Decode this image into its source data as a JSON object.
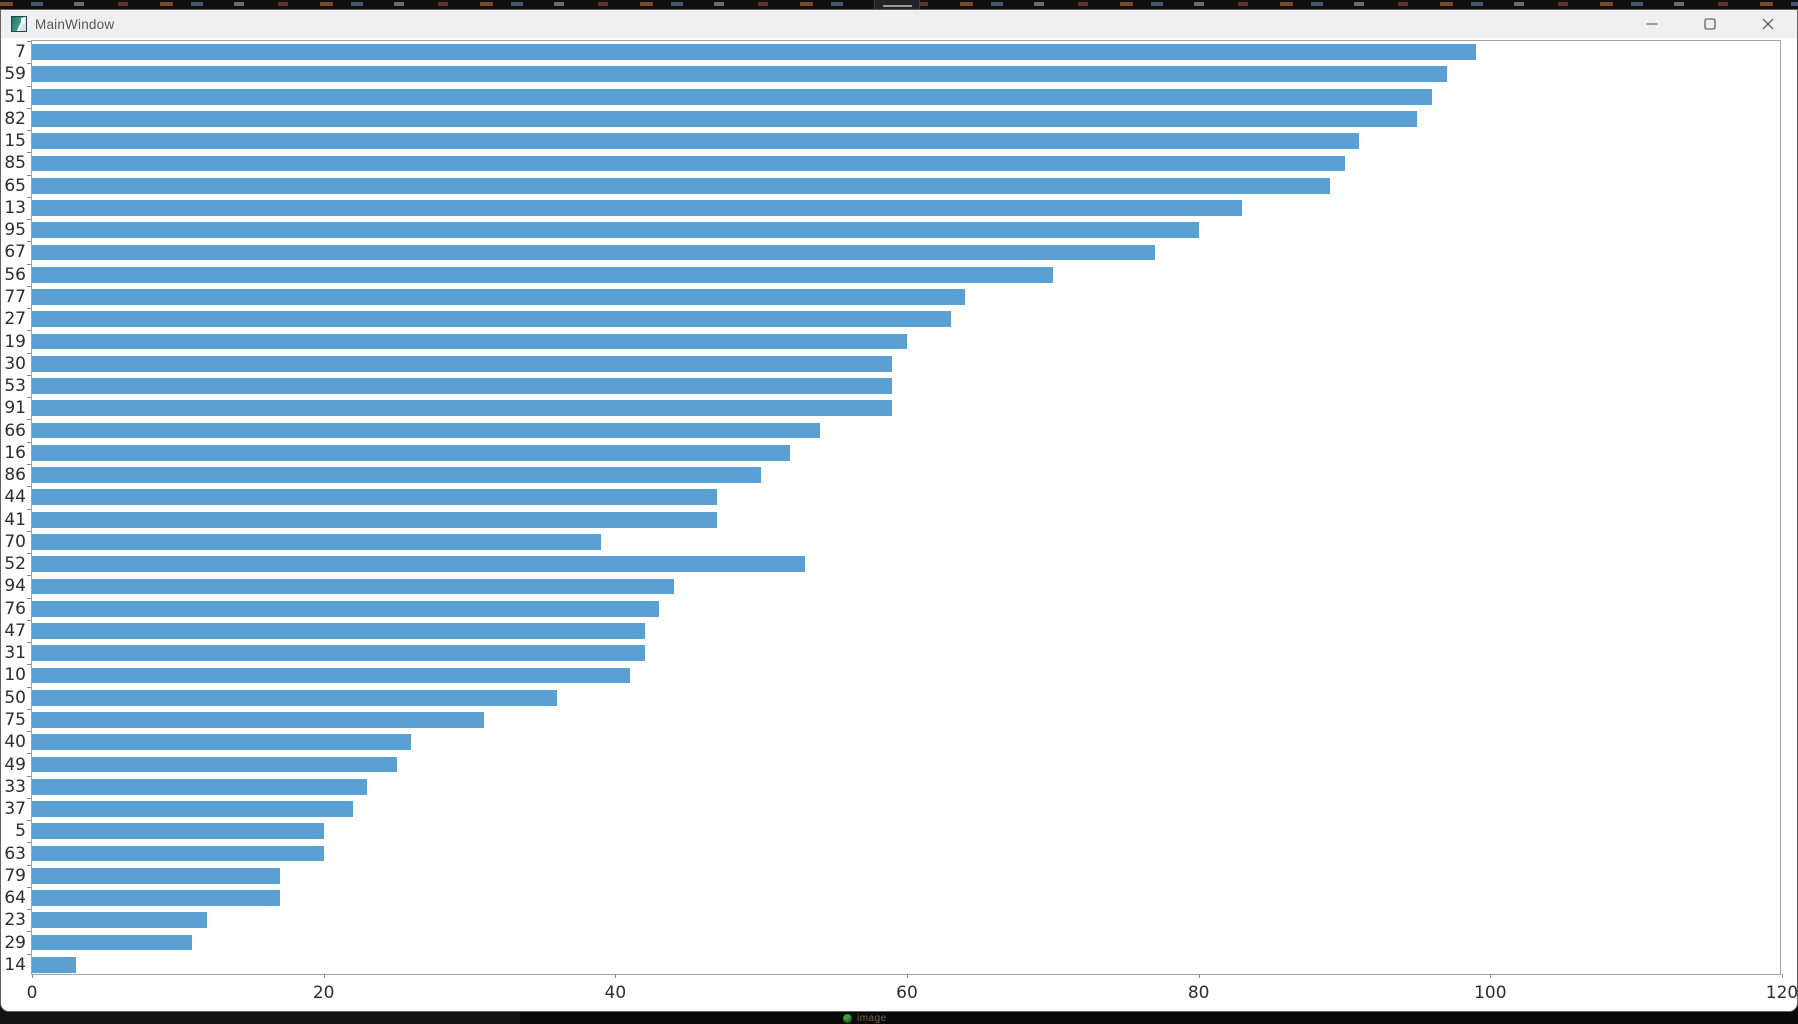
{
  "window": {
    "title": "MainWindow",
    "controls": [
      {
        "name": "minimize"
      },
      {
        "name": "maximize"
      },
      {
        "name": "close"
      }
    ]
  },
  "taskbar": {
    "app_label": "image"
  },
  "colors": {
    "bar": "#5ba0d2",
    "titlebar_bg": "#f0f0f0",
    "chart_bg": "#ffffff",
    "axis_spine": "#a2a2a2",
    "tick_label": "#2d2d2d",
    "taskbar_icon_green": "#3da43f"
  },
  "chart_data": {
    "type": "bar",
    "orientation": "horizontal",
    "title": "",
    "xlabel": "",
    "ylabel": "",
    "grid": false,
    "xlim": [
      0,
      120
    ],
    "x_ticks": [
      0,
      20,
      40,
      60,
      80,
      100,
      120
    ],
    "categories": [
      "7",
      "59",
      "51",
      "82",
      "15",
      "85",
      "65",
      "13",
      "95",
      "67",
      "56",
      "77",
      "27",
      "19",
      "30",
      "53",
      "91",
      "66",
      "16",
      "86",
      "44",
      "41",
      "70",
      "52",
      "94",
      "76",
      "47",
      "31",
      "10",
      "50",
      "75",
      "40",
      "49",
      "33",
      "37",
      "5",
      "63",
      "79",
      "64",
      "23",
      "29",
      "14"
    ],
    "values": [
      99,
      97,
      96,
      95,
      91,
      90,
      89,
      83,
      80,
      77,
      70,
      64,
      63,
      60,
      59,
      59,
      59,
      54,
      52,
      50,
      47,
      47,
      39,
      53,
      44,
      43,
      42,
      42,
      41,
      36,
      31,
      26,
      25,
      23,
      22,
      20,
      20,
      17,
      17,
      12,
      11,
      3
    ]
  }
}
